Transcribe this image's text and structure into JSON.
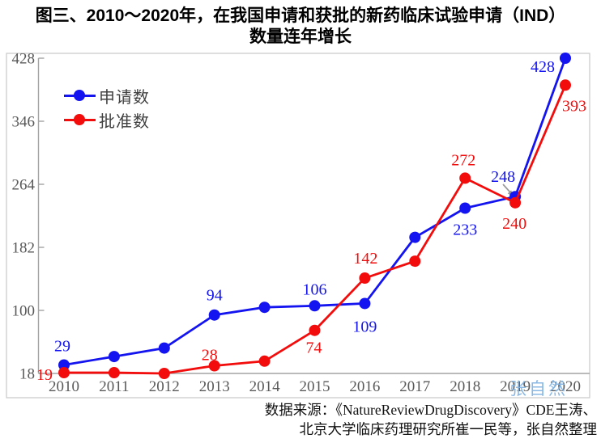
{
  "title": {
    "line1": "图三、2010～2020年，在我国申请和获批的新药临床试验申请（IND）",
    "line2": "数量连年增长"
  },
  "source": {
    "line1": "数据来源：《NatureReviewDrugDiscovery》CDE王涛、",
    "line2": "北京大学临床药理研究所崔一民等，张自然整理"
  },
  "watermark": "张自然",
  "colors": {
    "applications_blue": "#1414f0",
    "approvals_red": "#f20c0c",
    "axis": "#a3a3a3",
    "frame": "#c9c9c9",
    "tick_text": "#595959",
    "annotation_arrow": "#9a9a9a",
    "watermark_blue": "#7fb3e2"
  },
  "chart_data": {
    "type": "line",
    "title": "图三、2010～2020年，在我国申请和获批的新药临床试验申请（IND）数量连年增长",
    "x_labels": [
      "2010",
      "2011",
      "2012",
      "2013",
      "2014",
      "2015",
      "2016",
      "2017",
      "2018",
      "2019",
      "2020"
    ],
    "ylim": [
      18,
      428
    ],
    "yticks": [
      18,
      100,
      182,
      264,
      346,
      428
    ],
    "grid": false,
    "legend_position": "inside-top-left",
    "series": [
      {
        "name": "申请数",
        "color": "#1414f0",
        "values": [
          29,
          40,
          51,
          94,
          104,
          106,
          109,
          195,
          233,
          248,
          428
        ],
        "label_indices": [
          0,
          3,
          5,
          6,
          8,
          9,
          10
        ],
        "labeled_values": {
          "2010": 29,
          "2013": 94,
          "2015": 106,
          "2016": 109,
          "2018": 233,
          "2019": 248,
          "2020": 428
        }
      },
      {
        "name": "批准数",
        "color": "#f20c0c",
        "values": [
          19,
          19,
          18,
          28,
          34,
          74,
          142,
          164,
          272,
          240,
          393
        ],
        "label_indices": [
          0,
          3,
          5,
          6,
          8,
          9,
          10
        ],
        "labeled_values": {
          "2010": 19,
          "2013": 28,
          "2015": 74,
          "2016": 142,
          "2018": 272,
          "2019": 240,
          "2020": 393
        }
      }
    ],
    "annotation": {
      "text": "248",
      "note": "gray arrow from the 248 label to the 2019 申请数 point"
    }
  }
}
